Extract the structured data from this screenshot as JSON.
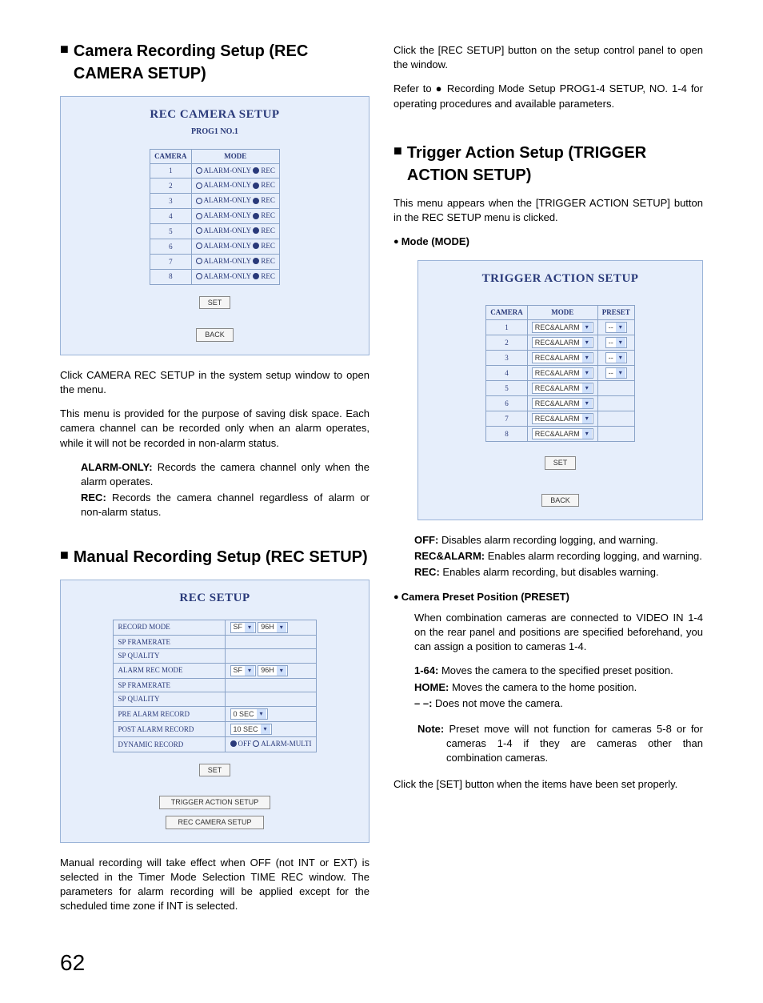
{
  "page_number": "62",
  "left": {
    "section1": {
      "title": "Camera Recording Setup (REC CAMERA SETUP)",
      "panel_title": "REC CAMERA SETUP",
      "panel_sub": "PROG1 NO.1",
      "th_camera": "CAMERA",
      "th_mode": "MODE",
      "rows": [
        "1",
        "2",
        "3",
        "4",
        "5",
        "6",
        "7",
        "8"
      ],
      "radio_a": "ALARM-ONLY",
      "radio_b": "REC",
      "btn_set": "SET",
      "btn_back": "BACK",
      "p1": "Click CAMERA REC SETUP in the system setup window to open the menu.",
      "p2": "This menu is provided for the purpose of saving disk space. Each camera channel can be recorded only when an alarm operates, while it will not be recorded in non-alarm status.",
      "d1l": "ALARM-ONLY:",
      "d1t": " Records the camera channel only when the alarm operates.",
      "d2l": "REC:",
      "d2t": " Records the camera channel regardless of alarm or non-alarm status."
    },
    "section2": {
      "title": "Manual Recording Setup (REC SETUP)",
      "panel_title": "REC SETUP",
      "rows": {
        "r1l": "RECORD MODE",
        "r1a": "SF",
        "r1b": "96H",
        "r2l": "SP FRAMERATE",
        "r3l": "SP QUALITY",
        "r4l": "ALARM REC MODE",
        "r4a": "SF",
        "r4b": "96H",
        "r5l": "SP FRAMERATE",
        "r6l": "SP QUALITY",
        "r7l": "PRE ALARM RECORD",
        "r7a": "0 SEC",
        "r8l": "POST ALARM RECORD",
        "r8a": "10 SEC",
        "r9l": "DYNAMIC RECORD",
        "r9a": "OFF",
        "r9b": "ALARM-MULTI"
      },
      "btn_set": "SET",
      "btn_trigger": "TRIGGER ACTION SETUP",
      "btn_camera": "REC CAMERA SETUP",
      "p1": "Manual recording will take effect when OFF (not INT or EXT) is selected in the Timer Mode Selection TIME REC window. The parameters for alarm recording will be applied except for the scheduled time zone if INT is selected."
    }
  },
  "right": {
    "p1": "Click the [REC SETUP] button on the setup control panel to open the window.",
    "p2": "Refer to ● Recording Mode Setup PROG1-4 SETUP, NO. 1-4 for operating procedures and available parameters.",
    "section3": {
      "title": "Trigger Action Setup (TRIGGER ACTION SETUP)",
      "p1": "This menu appears when the [TRIGGER ACTION SETUP] button in the REC SETUP menu is clicked.",
      "sub1": "Mode (MODE)",
      "panel_title": "TRIGGER ACTION SETUP",
      "th_camera": "CAMERA",
      "th_mode": "MODE",
      "th_preset": "PRESET",
      "rows": [
        "1",
        "2",
        "3",
        "4",
        "5",
        "6",
        "7",
        "8"
      ],
      "mode_val": "REC&ALARM",
      "preset_val": "--",
      "btn_set": "SET",
      "btn_back": "BACK",
      "d1l": "OFF:",
      "d1t": " Disables alarm recording logging, and warning.",
      "d2l": "REC&ALARM:",
      "d2t": " Enables alarm recording logging, and warning.",
      "d3l": "REC:",
      "d3t": " Enables alarm recording, but disables warning.",
      "sub2": "Camera Preset Position (PRESET)",
      "p2": "When combination cameras are connected to VIDEO IN 1-4 on the rear panel and positions are specified beforehand, you can assign a position to cameras 1-4.",
      "d4l": "1-64:",
      "d4t": " Moves the camera to the specified preset position.",
      "d5l": "HOME:",
      "d5t": " Moves the camera to the home position.",
      "d6l": "– –:",
      "d6t": " Does not move the camera.",
      "notel": "Note:",
      "notet": " Preset move will not function for cameras 5-8 or for cameras 1-4 if they are cameras other than combination cameras.",
      "p3": "Click the [SET] button when the items have been set properly."
    }
  }
}
